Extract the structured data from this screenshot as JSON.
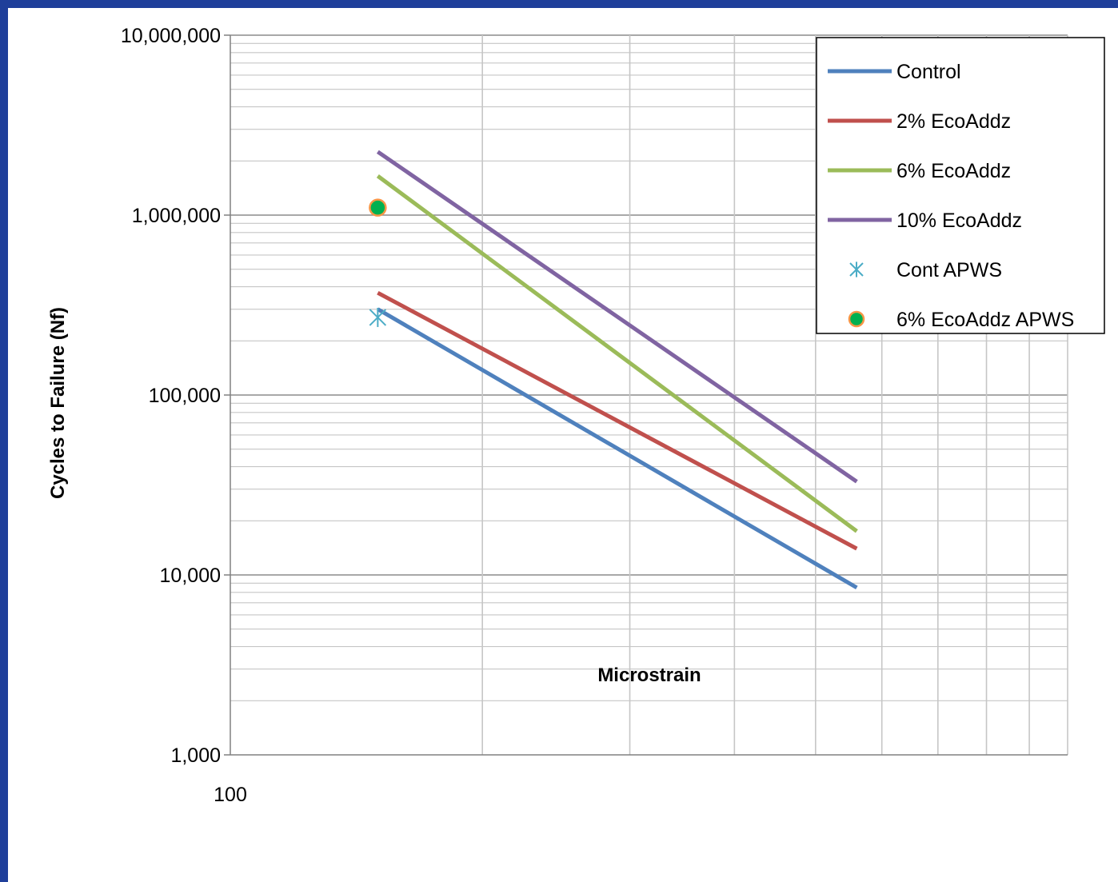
{
  "chart_data": {
    "type": "line",
    "xlabel": "Microstrain",
    "ylabel": "Cycles to Failure (Nf)",
    "x_scale": "log",
    "y_scale": "log",
    "xlim": [
      100,
      1000
    ],
    "ylim": [
      1000,
      10000000
    ],
    "grid": true,
    "legend_position": "top-right",
    "x_tick_labels": [
      {
        "value": 100,
        "label": "100"
      }
    ],
    "y_tick_labels": [
      {
        "value": 1000,
        "label": "1,000"
      },
      {
        "value": 10000,
        "label": "10,000"
      },
      {
        "value": 100000,
        "label": "100,000"
      },
      {
        "value": 1000000,
        "label": "1,000,000"
      },
      {
        "value": 10000000,
        "label": "10,000,000"
      }
    ],
    "series": [
      {
        "name": "Control",
        "kind": "line",
        "color": "#4f81bd",
        "x": [
          150,
          560
        ],
        "y": [
          300000,
          8500
        ]
      },
      {
        "name": "2% EcoAddz",
        "kind": "line",
        "color": "#c0504d",
        "x": [
          150,
          560
        ],
        "y": [
          370000,
          14000
        ]
      },
      {
        "name": "6% EcoAddz",
        "kind": "line",
        "color": "#9bbb59",
        "x": [
          150,
          560
        ],
        "y": [
          1650000,
          17500
        ]
      },
      {
        "name": "10% EcoAddz",
        "kind": "line",
        "color": "#8064a2",
        "x": [
          150,
          560
        ],
        "y": [
          2250000,
          33000
        ]
      },
      {
        "name": "Cont APWS",
        "kind": "marker",
        "marker": "asterisk",
        "color": "#4bacc6",
        "x": [
          150
        ],
        "y": [
          270000
        ]
      },
      {
        "name": "6% EcoAddz APWS",
        "kind": "marker",
        "marker": "circle",
        "color": "#00b050",
        "edge_color": "#f79646",
        "x": [
          150
        ],
        "y": [
          1100000
        ]
      }
    ]
  }
}
